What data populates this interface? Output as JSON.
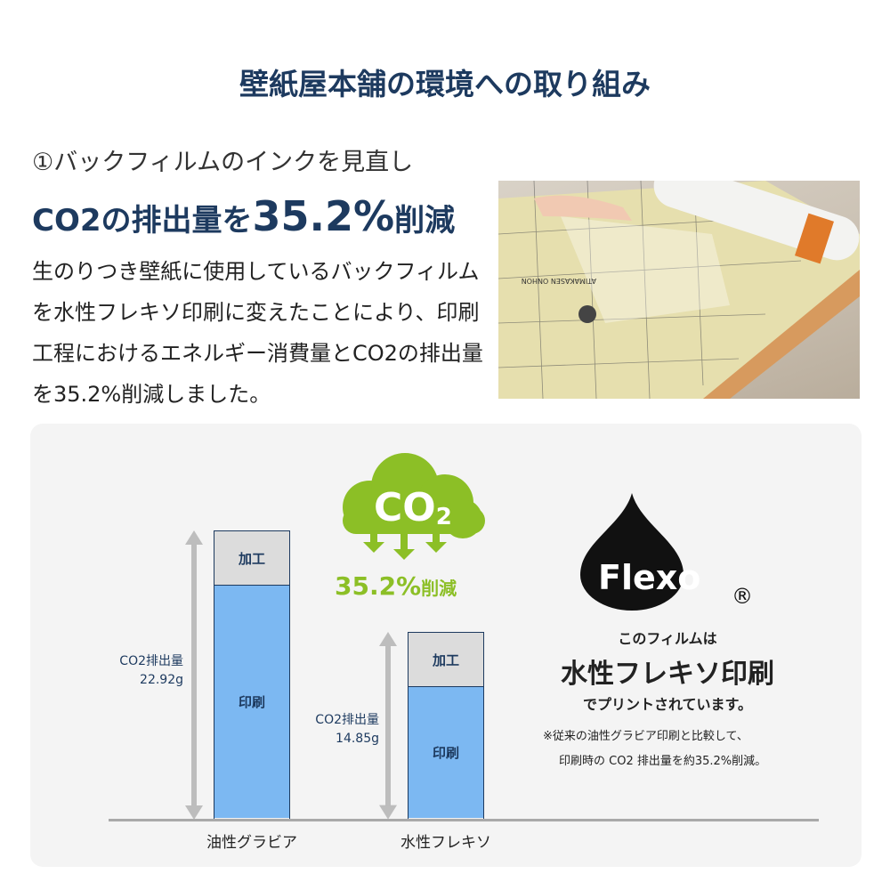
{
  "title": "壁紙屋本舗の環境への取り組み",
  "heading": {
    "line1": "①バックフィルムのインクを見直し",
    "line2_prefix": "CO2の排出量を",
    "line2_value": "35.2%",
    "line2_suffix": "削減"
  },
  "body": "生のりつき壁紙に使用しているバックフィルムを水性フレキソ印刷に変えたことにより、印刷工程におけるエネルギー消費量とCO2の排出量を35.2%削減しました。",
  "photo": {
    "label": "ATIMAKASEN ONHON"
  },
  "badge": {
    "co2": "CO",
    "co2_sub": "2",
    "reduction": "35.2%",
    "reduction_suffix": "削減"
  },
  "flexo": {
    "logo": "Flexo",
    "registered": "®",
    "line1": "このフィルムは",
    "line2": "水性フレキソ印刷",
    "line3": "でプリントされています。",
    "note1": "※従来の油性グラビア印刷と比較して、",
    "note2": "印刷時の CO2 排出量を約35.2%削減。"
  },
  "colors": {
    "navy": "#1d3a5f",
    "green": "#8cbf26",
    "blue": "#7cb8f2",
    "gray": "#dcdcdc"
  },
  "chart_data": {
    "type": "bar",
    "stacked": true,
    "categories": [
      "油性グラビア",
      "水性フレキソ"
    ],
    "series": [
      {
        "name": "印刷",
        "values": [
          18.6,
          10.55
        ]
      },
      {
        "name": "加工",
        "values": [
          4.32,
          4.3
        ]
      }
    ],
    "totals": [
      22.92,
      14.85
    ],
    "total_labels": [
      {
        "label": "CO2排出量",
        "value": "22.92g"
      },
      {
        "label": "CO2排出量",
        "value": "14.85g"
      }
    ],
    "ylim": [
      0,
      22.92
    ],
    "grid": false
  }
}
